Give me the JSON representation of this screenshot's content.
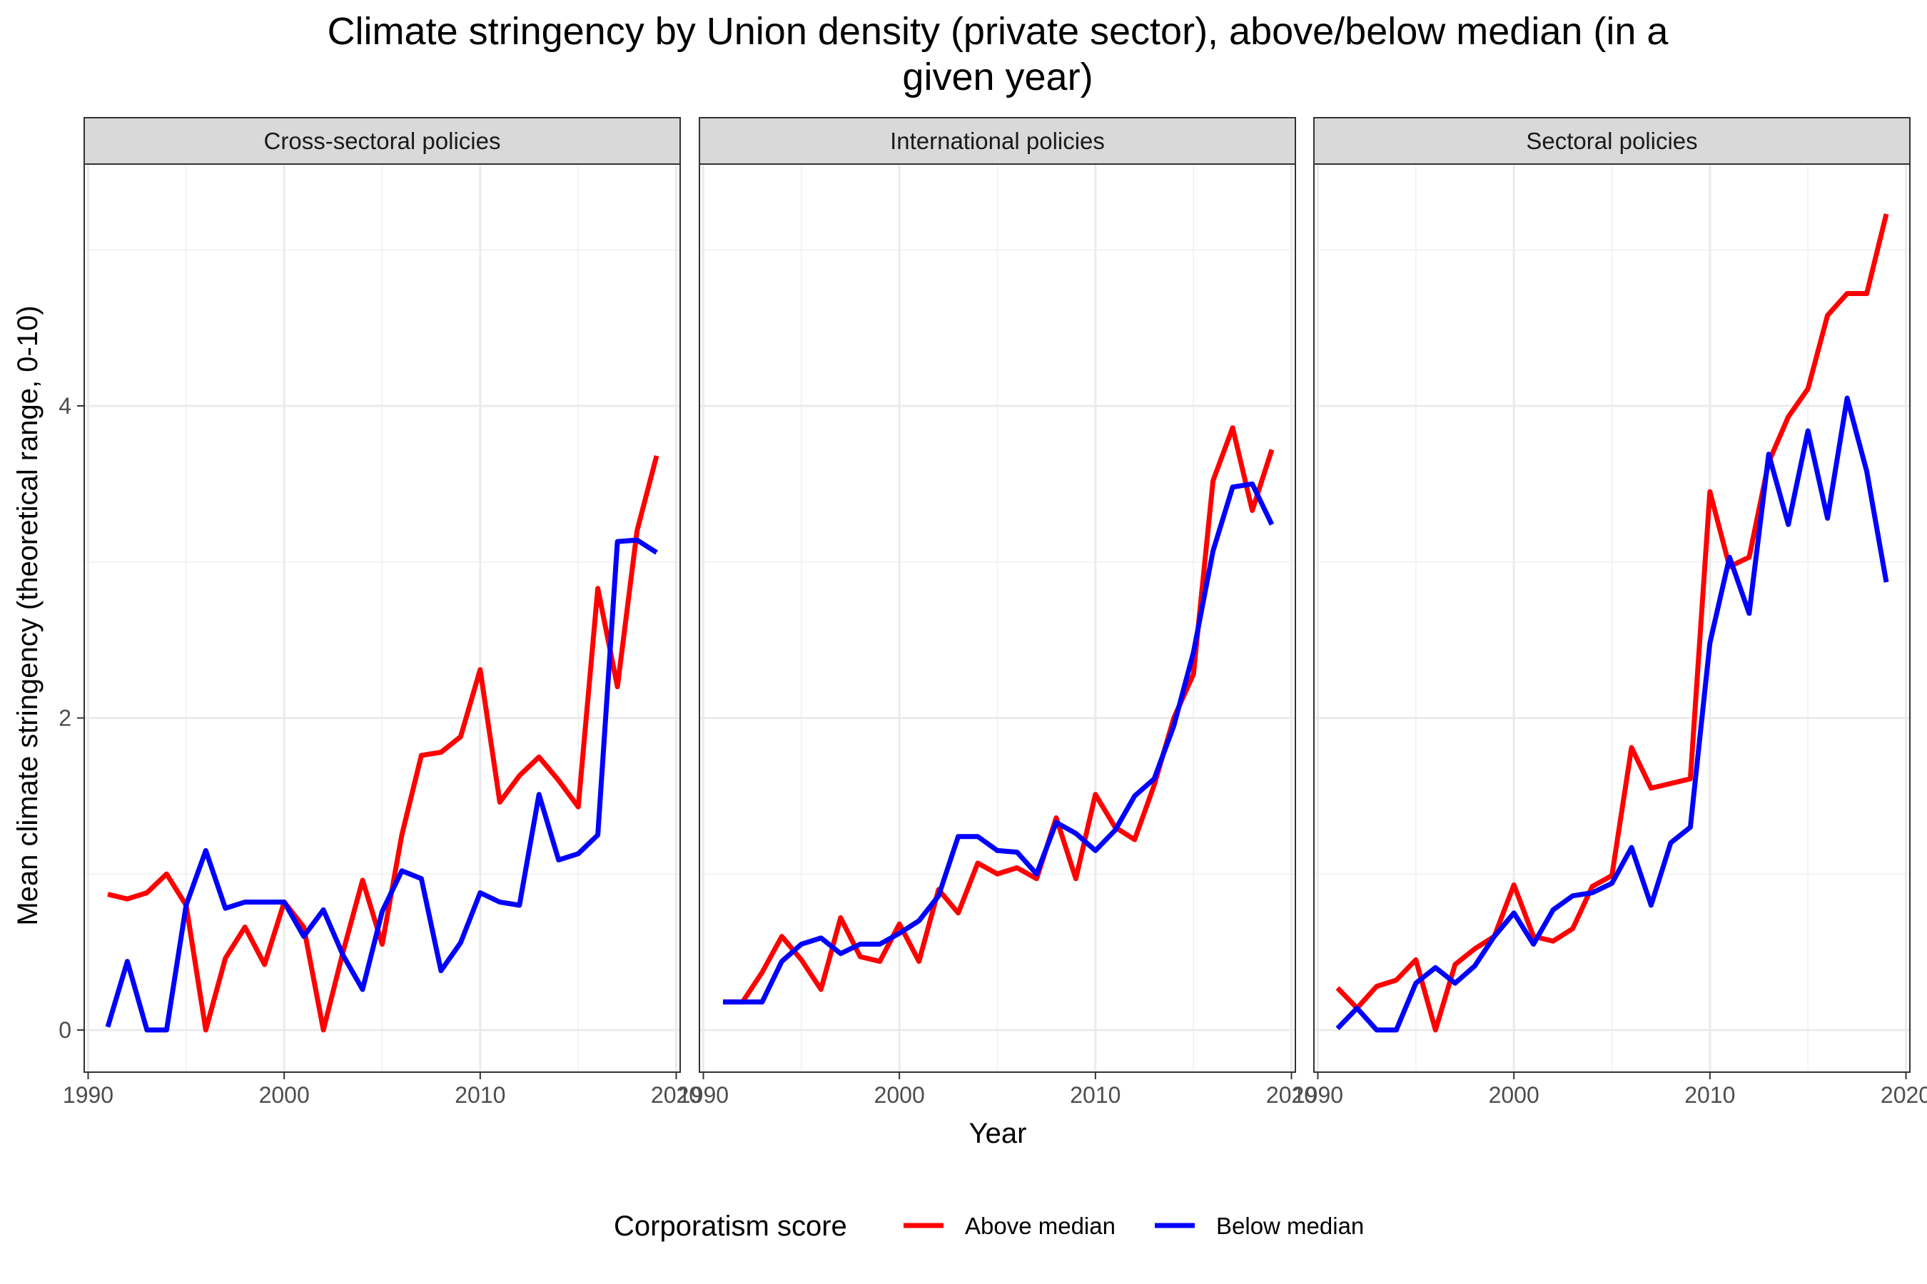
{
  "chart_data": {
    "type": "line",
    "title": "Climate stringency by Union density (private sector), above/below median (in a given year)",
    "title_lines": [
      "Climate stringency by Union density (private sector), above/below median (in a",
      "given year)"
    ],
    "xlabel": "Year",
    "ylabel": "Mean climate stringency (theoretical range, 0-10)",
    "xlim": [
      1989.8,
      2020.2
    ],
    "ylim": [
      -0.27,
      5.55
    ],
    "xticks": [
      1990,
      2000,
      2010,
      2020
    ],
    "xtick_labels": [
      "1990",
      "2000",
      "2010",
      "2020"
    ],
    "yticks": [
      0,
      2,
      4
    ],
    "ytick_labels": [
      "0",
      "2",
      "4"
    ],
    "grid": true,
    "legend": {
      "title": "Corporatism score",
      "position": "bottom",
      "entries": [
        {
          "label": "Above median",
          "color": "#ff0000"
        },
        {
          "label": "Below median",
          "color": "#0000ff"
        }
      ]
    },
    "panels": [
      {
        "title": "Cross-sectoral policies",
        "x": [
          1991,
          1992,
          1993,
          1994,
          1995,
          1996,
          1997,
          1998,
          1999,
          2000,
          2001,
          2002,
          2003,
          2004,
          2005,
          2006,
          2007,
          2008,
          2009,
          2010,
          2011,
          2012,
          2013,
          2014,
          2015,
          2016,
          2017,
          2018,
          2019
        ],
        "series": [
          {
            "name": "Above median",
            "color": "#ff0000",
            "values": [
              0.87,
              0.84,
              0.88,
              1.0,
              0.8,
              0.0,
              0.46,
              0.66,
              0.42,
              0.82,
              0.66,
              0.0,
              0.5,
              0.96,
              0.55,
              1.25,
              1.76,
              1.78,
              1.88,
              2.31,
              1.46,
              1.63,
              1.75,
              1.6,
              1.43,
              2.83,
              2.2,
              3.2,
              3.68
            ]
          },
          {
            "name": "Below median",
            "color": "#0000ff",
            "values": [
              0.02,
              0.44,
              0.0,
              0.0,
              0.8,
              1.15,
              0.78,
              0.82,
              0.82,
              0.82,
              0.6,
              0.77,
              0.48,
              0.26,
              0.76,
              1.02,
              0.97,
              0.38,
              0.56,
              0.88,
              0.82,
              0.8,
              1.51,
              1.09,
              1.13,
              1.25,
              3.13,
              3.14,
              3.06
            ]
          }
        ]
      },
      {
        "title": "International policies",
        "x": [
          1991,
          1992,
          1993,
          1994,
          1995,
          1996,
          1997,
          1998,
          1999,
          2000,
          2001,
          2002,
          2003,
          2004,
          2005,
          2006,
          2007,
          2008,
          2009,
          2010,
          2011,
          2012,
          2013,
          2014,
          2015,
          2016,
          2017,
          2018,
          2019
        ],
        "series": [
          {
            "name": "Above median",
            "color": "#ff0000",
            "values": [
              0.18,
              0.18,
              0.37,
              0.6,
              0.45,
              0.26,
              0.72,
              0.47,
              0.44,
              0.68,
              0.44,
              0.9,
              0.75,
              1.07,
              1.0,
              1.04,
              0.97,
              1.36,
              0.97,
              1.51,
              1.3,
              1.22,
              1.57,
              2.0,
              2.28,
              3.52,
              3.86,
              3.33,
              3.72
            ]
          },
          {
            "name": "Below median",
            "color": "#0000ff",
            "values": [
              0.18,
              0.18,
              0.18,
              0.44,
              0.55,
              0.59,
              0.49,
              0.55,
              0.55,
              0.62,
              0.7,
              0.86,
              1.24,
              1.24,
              1.15,
              1.14,
              1.0,
              1.33,
              1.26,
              1.15,
              1.28,
              1.5,
              1.61,
              1.95,
              2.42,
              3.07,
              3.48,
              3.5,
              3.24
            ]
          }
        ]
      },
      {
        "title": "Sectoral policies",
        "x": [
          1991,
          1992,
          1993,
          1994,
          1995,
          1996,
          1997,
          1998,
          1999,
          2000,
          2001,
          2002,
          2003,
          2004,
          2005,
          2006,
          2007,
          2008,
          2009,
          2010,
          2011,
          2012,
          2013,
          2014,
          2015,
          2016,
          2017,
          2018,
          2019
        ],
        "series": [
          {
            "name": "Above median",
            "color": "#ff0000",
            "values": [
              0.27,
              0.14,
              0.28,
              0.32,
              0.45,
              0.0,
              0.42,
              0.52,
              0.6,
              0.93,
              0.6,
              0.57,
              0.65,
              0.92,
              0.99,
              1.81,
              1.55,
              1.58,
              1.61,
              3.45,
              2.97,
              3.03,
              3.64,
              3.93,
              4.11,
              4.58,
              4.72,
              4.72,
              5.23
            ]
          },
          {
            "name": "Below median",
            "color": "#0000ff",
            "values": [
              0.01,
              0.14,
              0.0,
              0.0,
              0.3,
              0.4,
              0.3,
              0.41,
              0.6,
              0.75,
              0.55,
              0.77,
              0.86,
              0.88,
              0.94,
              1.17,
              0.8,
              1.2,
              1.3,
              2.48,
              3.03,
              2.67,
              3.69,
              3.24,
              3.84,
              3.28,
              4.05,
              3.58,
              2.87
            ]
          }
        ]
      }
    ]
  }
}
